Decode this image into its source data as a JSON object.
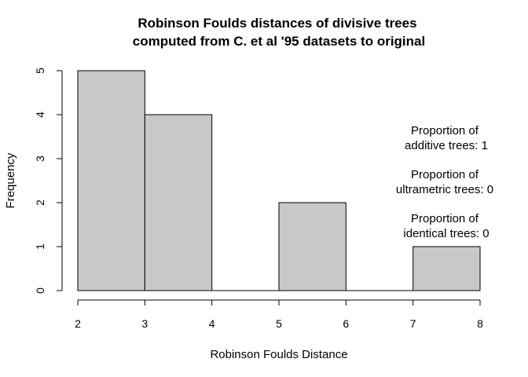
{
  "chart_data": {
    "type": "bar",
    "subtype": "histogram",
    "title": "Robinson Foulds distances of divisive trees",
    "subtitle": "computed from C. et al '95 datasets to original",
    "xlabel": "Robinson Foulds Distance",
    "ylabel": "Frequency",
    "bins": [
      {
        "start": 2,
        "end": 3,
        "count": 5
      },
      {
        "start": 3,
        "end": 4,
        "count": 4
      },
      {
        "start": 4,
        "end": 5,
        "count": 0
      },
      {
        "start": 5,
        "end": 6,
        "count": 2
      },
      {
        "start": 6,
        "end": 7,
        "count": 0
      },
      {
        "start": 7,
        "end": 8,
        "count": 1
      }
    ],
    "xlim": [
      2,
      8
    ],
    "ylim": [
      0,
      5
    ],
    "x_ticks": [
      "2",
      "3",
      "4",
      "5",
      "6",
      "7",
      "8"
    ],
    "y_ticks": [
      "0",
      "1",
      "2",
      "3",
      "4",
      "5"
    ],
    "bar_fill": "#c8c8c8",
    "bar_stroke": "#000000",
    "grid": false,
    "annotations": [
      {
        "line1": "Proportion of",
        "line2": "additive trees: 1"
      },
      {
        "line1": "Proportion of",
        "line2": "ultrametric trees: 0"
      },
      {
        "line1": "Proportion of",
        "line2": "identical trees: 0"
      }
    ]
  }
}
